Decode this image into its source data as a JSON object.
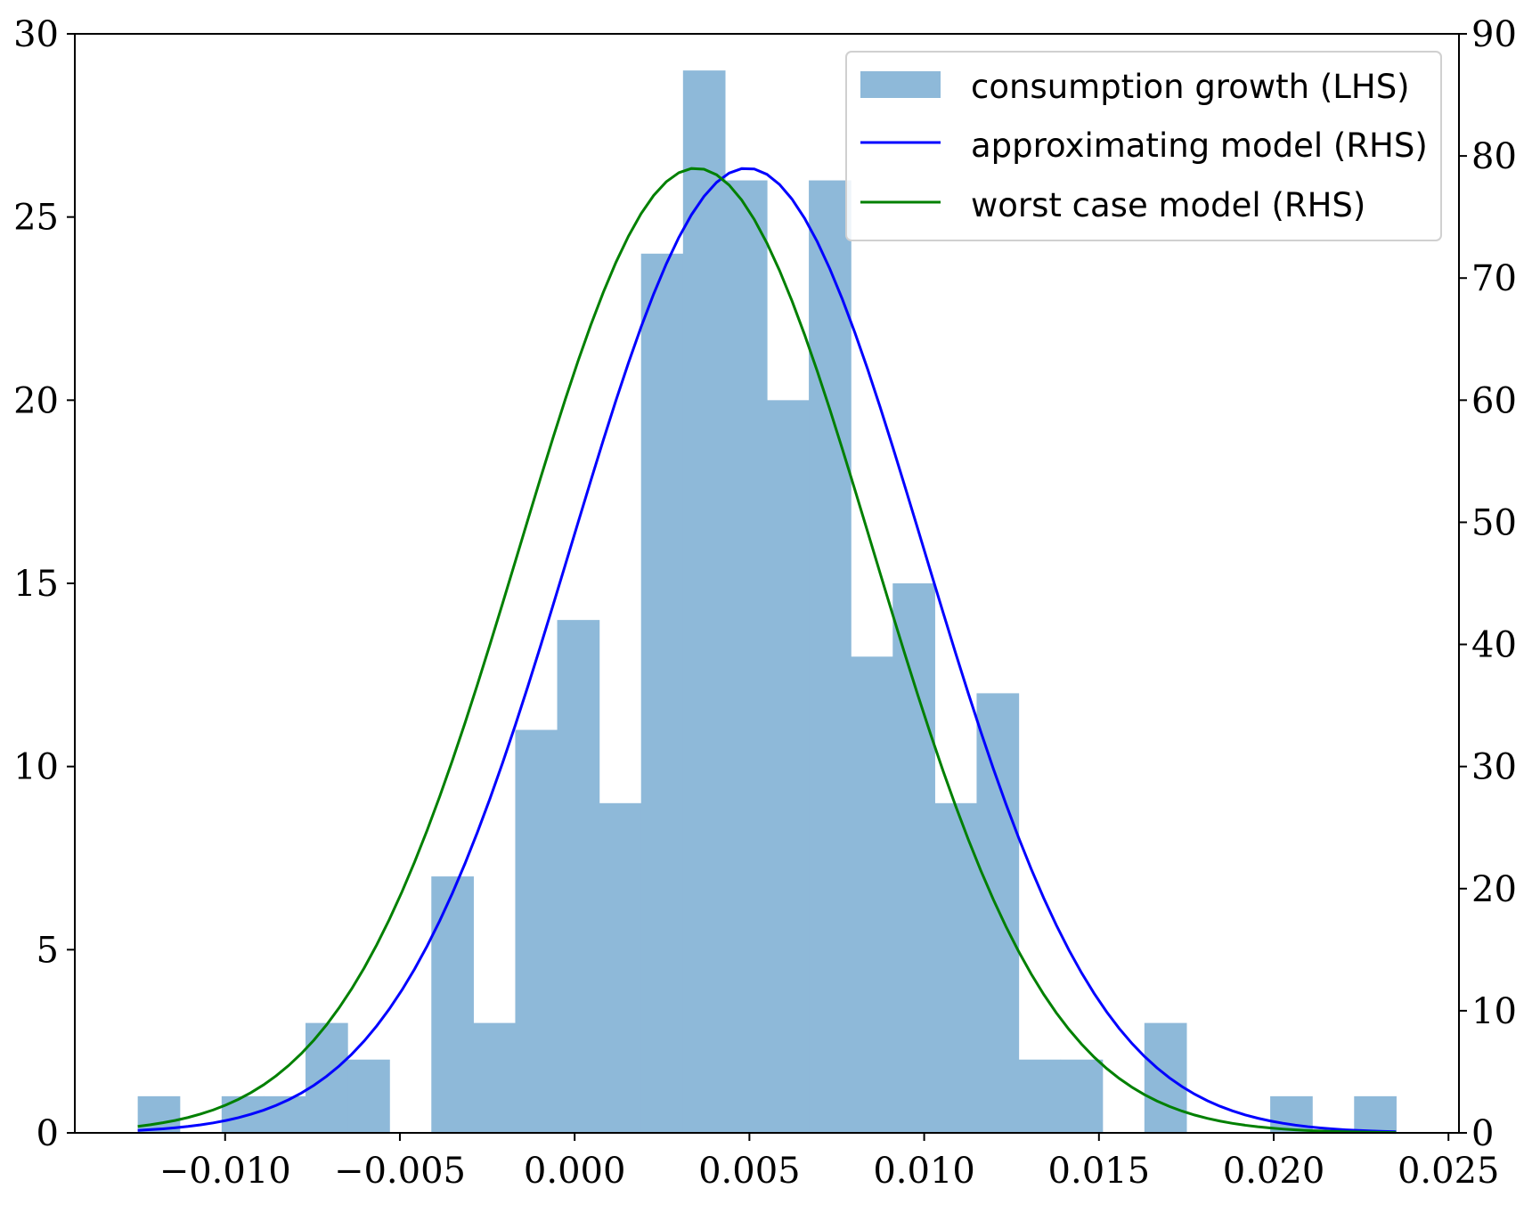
{
  "chart_data": {
    "type": "bar",
    "histogram": {
      "name": "consumption growth (LHS)",
      "axis": "left",
      "color": "#8eb9d9",
      "bin_edges": [
        -0.0125,
        -0.0113,
        -0.0101,
        -0.0089,
        -0.0077,
        -0.0065,
        -0.0053,
        -0.0041,
        -0.0029,
        -0.0017,
        -0.0005,
        0.0007,
        0.0019,
        0.0031,
        0.0043,
        0.0055,
        0.0067,
        0.0079,
        0.0091,
        0.0103,
        0.0115,
        0.0127,
        0.0139,
        0.0151,
        0.0163,
        0.0175,
        0.0187,
        0.0199,
        0.0211,
        0.0223,
        0.0235
      ],
      "counts": [
        1,
        0,
        1,
        1,
        3,
        2,
        0,
        7,
        3,
        11,
        14,
        9,
        24,
        29,
        26,
        20,
        26,
        13,
        15,
        9,
        12,
        2,
        2,
        0,
        3,
        0,
        0,
        1,
        0,
        1
      ]
    },
    "series": [
      {
        "name": "approximating model (RHS)",
        "axis": "right",
        "color": "#0000ff",
        "kind": "normal_pdf",
        "mean": 0.00493,
        "std": 0.00505,
        "x_range": [
          -0.0125,
          0.0235
        ]
      },
      {
        "name": "worst case model (RHS)",
        "axis": "right",
        "color": "#008000",
        "kind": "normal_pdf",
        "mean": 0.00347,
        "std": 0.00505,
        "x_range": [
          -0.0125,
          0.0235
        ]
      }
    ],
    "x_ticks": [
      "−0.010",
      "−0.005",
      "0.000",
      "0.005",
      "0.010",
      "0.015",
      "0.020",
      "0.025"
    ],
    "x_tick_values": [
      -0.01,
      -0.005,
      0,
      0.005,
      0.01,
      0.015,
      0.02,
      0.025
    ],
    "xlim": [
      -0.0143,
      0.0253
    ],
    "y_left_ticks": [
      "0",
      "5",
      "10",
      "15",
      "20",
      "25",
      "30"
    ],
    "y_left_tick_values": [
      0,
      5,
      10,
      15,
      20,
      25,
      30
    ],
    "ylim_left": [
      0,
      30
    ],
    "y_right_ticks": [
      "0",
      "10",
      "20",
      "30",
      "40",
      "50",
      "60",
      "70",
      "80",
      "90"
    ],
    "y_right_tick_values": [
      0,
      10,
      20,
      30,
      40,
      50,
      60,
      70,
      80,
      90
    ],
    "ylim_right": [
      0,
      90
    ],
    "grid": false,
    "legend": {
      "position": "top-right",
      "entries": [
        "consumption growth (LHS)",
        "approximating model (RHS)",
        "worst case model (RHS)"
      ]
    }
  }
}
